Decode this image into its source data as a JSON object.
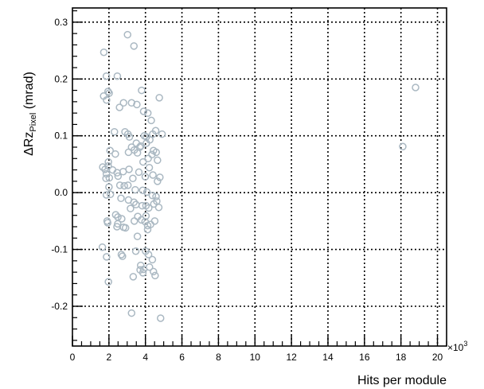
{
  "chart_data": {
    "type": "scatter",
    "xlabel": "Hits per module",
    "x_multiplier_label": "×10",
    "x_multiplier_exp": "3",
    "ylabel": {
      "prefix": "ΔRz",
      "subscript": "Pixel",
      "suffix": " (mrad)"
    },
    "xlim": [
      0,
      20.5
    ],
    "ylim": [
      -0.27,
      0.325
    ],
    "xticks": [
      0,
      2,
      4,
      6,
      8,
      10,
      12,
      14,
      16,
      18,
      20
    ],
    "yticks": [
      -0.2,
      -0.1,
      0.0,
      0.1,
      0.2,
      0.3
    ],
    "ytick_labels": [
      "-0.2",
      "-0.1",
      "0.0",
      "0.1",
      "0.2",
      "0.3"
    ],
    "grid": true,
    "marker_color": "#aab8c2",
    "points": [
      [
        1.72,
        0.247
      ],
      [
        1.86,
        0.205
      ],
      [
        1.71,
        0.17
      ],
      [
        1.95,
        0.178
      ],
      [
        2.01,
        0.175
      ],
      [
        1.87,
        0.163
      ],
      [
        2.46,
        0.205
      ],
      [
        3.02,
        0.278
      ],
      [
        3.37,
        0.258
      ],
      [
        3.53,
        0.155
      ],
      [
        2.58,
        0.15
      ],
      [
        2.8,
        0.158
      ],
      [
        3.24,
        0.158
      ],
      [
        3.79,
        0.18
      ],
      [
        4.76,
        0.167
      ],
      [
        3.9,
        0.143
      ],
      [
        4.13,
        0.14
      ],
      [
        4.32,
        0.127
      ],
      [
        2.3,
        0.107
      ],
      [
        2.88,
        0.107
      ],
      [
        3.04,
        0.103
      ],
      [
        3.12,
        0.098
      ],
      [
        3.5,
        0.087
      ],
      [
        3.74,
        0.082
      ],
      [
        3.69,
        0.08
      ],
      [
        3.94,
        0.1
      ],
      [
        4.05,
        0.098
      ],
      [
        4.24,
        0.093
      ],
      [
        4.4,
        0.103
      ],
      [
        4.56,
        0.109
      ],
      [
        4.91,
        0.103
      ],
      [
        4.05,
        0.087
      ],
      [
        3.24,
        0.08
      ],
      [
        3.39,
        0.075
      ],
      [
        3.56,
        0.07
      ],
      [
        4.36,
        0.067
      ],
      [
        4.44,
        0.074
      ],
      [
        4.59,
        0.071
      ],
      [
        4.15,
        0.06
      ],
      [
        4.66,
        0.057
      ],
      [
        3.87,
        0.054
      ],
      [
        4.21,
        0.044
      ],
      [
        3.07,
        0.071
      ],
      [
        2.35,
        0.068
      ],
      [
        2.06,
        0.074
      ],
      [
        1.97,
        0.054
      ],
      [
        1.96,
        0.047
      ],
      [
        1.66,
        0.045
      ],
      [
        1.79,
        0.041
      ],
      [
        1.86,
        0.033
      ],
      [
        2.02,
        0.026
      ],
      [
        1.84,
        0.025
      ],
      [
        2.2,
        0.04
      ],
      [
        2.45,
        0.035
      ],
      [
        2.5,
        0.029
      ],
      [
        2.78,
        0.037
      ],
      [
        3.1,
        0.041
      ],
      [
        3.31,
        0.025
      ],
      [
        3.64,
        0.036
      ],
      [
        3.99,
        0.028
      ],
      [
        4.41,
        0.031
      ],
      [
        4.66,
        0.02
      ],
      [
        4.79,
        0.027
      ],
      [
        2.6,
        0.013
      ],
      [
        2.84,
        0.012
      ],
      [
        3.04,
        0.013
      ],
      [
        3.44,
        0.005
      ],
      [
        3.85,
        0.004
      ],
      [
        4.08,
        0.001
      ],
      [
        4.38,
        -0.005
      ],
      [
        4.58,
        -0.007
      ],
      [
        2.0,
        0.01
      ],
      [
        1.86,
        -0.004
      ],
      [
        2.08,
        -0.003
      ],
      [
        2.66,
        -0.01
      ],
      [
        3.07,
        -0.013
      ],
      [
        3.37,
        -0.017
      ],
      [
        3.18,
        -0.028
      ],
      [
        3.48,
        -0.021
      ],
      [
        3.82,
        -0.023
      ],
      [
        4.03,
        -0.023
      ],
      [
        4.18,
        -0.027
      ],
      [
        4.46,
        -0.02
      ],
      [
        4.62,
        -0.015
      ],
      [
        4.73,
        -0.026
      ],
      [
        2.37,
        -0.039
      ],
      [
        2.49,
        -0.043
      ],
      [
        2.7,
        -0.046
      ],
      [
        2.48,
        -0.055
      ],
      [
        2.44,
        -0.06
      ],
      [
        2.91,
        -0.062
      ],
      [
        2.8,
        -0.061
      ],
      [
        3.39,
        -0.05
      ],
      [
        3.58,
        -0.042
      ],
      [
        3.78,
        -0.048
      ],
      [
        4.03,
        -0.041
      ],
      [
        3.98,
        -0.051
      ],
      [
        4.12,
        -0.058
      ],
      [
        4.28,
        -0.056
      ],
      [
        4.51,
        -0.05
      ],
      [
        4.12,
        -0.065
      ],
      [
        3.56,
        -0.077
      ],
      [
        1.9,
        -0.05
      ],
      [
        1.93,
        -0.053
      ],
      [
        1.64,
        -0.096
      ],
      [
        1.87,
        -0.113
      ],
      [
        2.74,
        -0.112
      ],
      [
        2.68,
        -0.109
      ],
      [
        3.47,
        -0.103
      ],
      [
        4.01,
        -0.103
      ],
      [
        4.17,
        -0.109
      ],
      [
        4.38,
        -0.118
      ],
      [
        3.74,
        -0.128
      ],
      [
        3.9,
        -0.135
      ],
      [
        3.71,
        -0.136
      ],
      [
        3.86,
        -0.141
      ],
      [
        4.22,
        -0.131
      ],
      [
        4.44,
        -0.139
      ],
      [
        4.53,
        -0.146
      ],
      [
        3.33,
        -0.148
      ],
      [
        1.97,
        -0.157
      ],
      [
        3.24,
        -0.212
      ],
      [
        4.83,
        -0.221
      ],
      [
        18.1,
        0.081
      ],
      [
        18.8,
        0.185
      ]
    ]
  }
}
